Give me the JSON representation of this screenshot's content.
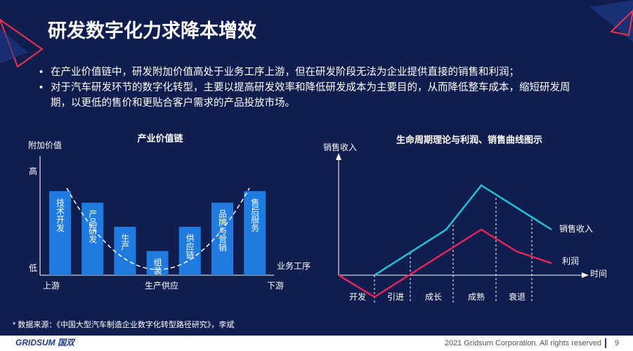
{
  "title": "研发数字化力求降本增效",
  "bullets": [
    "在产业价值链中，研发附加价值高处于业务工序上游，但在研发阶段无法为企业提供直接的销售和利润；",
    "对于汽车研发环节的数字化转型，主要以提高研发效率和降低研发成本为主要目的，从而降低整车成本，缩短研发周期，以更低的售价和更贴合客户需求的产品投放市场。"
  ],
  "value_chain": {
    "title": "产业价值链",
    "y_label": "附加价值",
    "y_high": "高",
    "y_low": "低",
    "x_axis_label": "业务工序",
    "x_labels": [
      "上游",
      "生产供应",
      "下游"
    ],
    "ylim": [
      0,
      100
    ],
    "bars": [
      {
        "label": "技术开发",
        "value": 73
      },
      {
        "label": "产品研发",
        "value": 63
      },
      {
        "label": "生产",
        "value": 42
      },
      {
        "label": "组装",
        "value": 21
      },
      {
        "label": "供应链",
        "value": 42
      },
      {
        "label": "品牌与营销",
        "value": 63
      },
      {
        "label": "售后服务",
        "value": 73
      }
    ]
  },
  "lifecycle": {
    "title": "生命周期理论与利润、销售曲线图示",
    "y_label": "销售收入",
    "x_axis_label": "时间",
    "stages": [
      "开发",
      "引进",
      "成长",
      "成熟",
      "衰退"
    ],
    "sales_label": "销售收入",
    "profit_label": "利润"
  },
  "source": "* 数据来源：《中国大型汽车制造企业数字化转型路径研究》，李斌",
  "footer": {
    "logo": "GRIDSUM 国双",
    "copyright": "2021 Gridsum Corporation. All rights reserved",
    "page": 9
  }
}
